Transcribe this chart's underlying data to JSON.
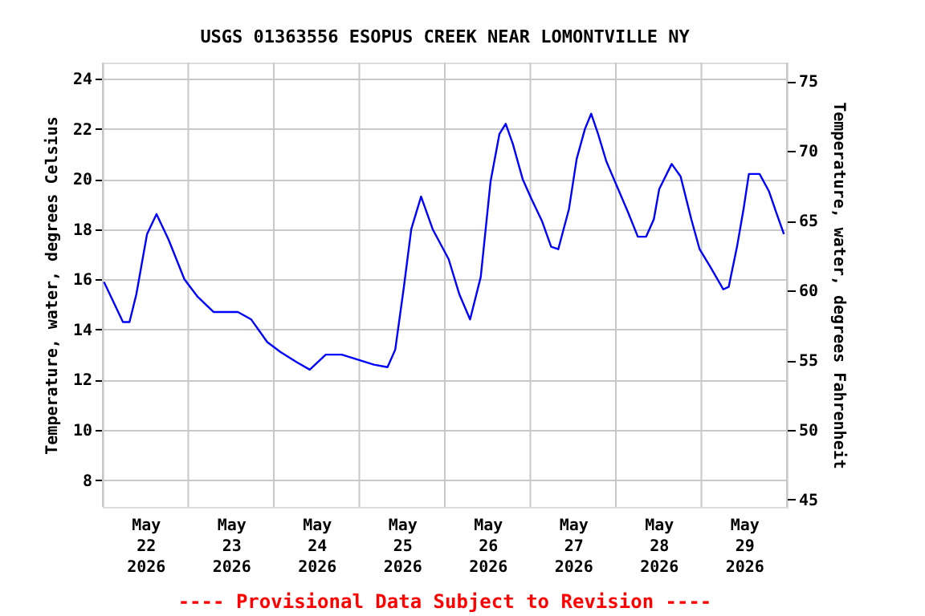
{
  "chart_data": {
    "type": "line",
    "title": "USGS 01363556 ESOPUS CREEK NEAR LOMONTVILLE NY",
    "ylabel": "Temperature, water, degrees Celsius",
    "y2label": "Temperature, water, degrees Fahrenheit",
    "annotations": [
      "---- Provisional Data Subject to Revision ----"
    ],
    "x": [
      "2026-05-22T00:20",
      "2026-05-22T05:40",
      "2026-05-22T07:30",
      "2026-05-22T09:25",
      "2026-05-22T12:25",
      "2026-05-22T15:05",
      "2026-05-22T18:25",
      "2026-05-22T22:55",
      "2026-05-23T02:40",
      "2026-05-23T07:05",
      "2026-05-23T13:55",
      "2026-05-23T17:40",
      "2026-05-23T22:10",
      "2026-05-24T01:55",
      "2026-05-24T06:25",
      "2026-05-24T10:05",
      "2026-05-24T14:35",
      "2026-05-24T19:05",
      "2026-05-24T23:35",
      "2026-05-25T04:05",
      "2026-05-25T07:55",
      "2026-05-25T10:05",
      "2026-05-25T12:25",
      "2026-05-25T14:35",
      "2026-05-25T17:20",
      "2026-05-25T20:35",
      "2026-05-26T01:05",
      "2026-05-26T04:05",
      "2026-05-26T07:05",
      "2026-05-26T10:05",
      "2026-05-26T12:50",
      "2026-05-26T15:20",
      "2026-05-26T17:05",
      "2026-05-26T19:05",
      "2026-05-26T21:50",
      "2026-05-27T00:20",
      "2026-05-27T03:20",
      "2026-05-27T05:50",
      "2026-05-27T07:50",
      "2026-05-27T10:50",
      "2026-05-27T13:00",
      "2026-05-27T15:20",
      "2026-05-27T17:05",
      "2026-05-27T19:00",
      "2026-05-27T21:20",
      "2026-05-28T00:20",
      "2026-05-28T03:20",
      "2026-05-28T06:10",
      "2026-05-28T08:30",
      "2026-05-28T10:40",
      "2026-05-28T12:10",
      "2026-05-28T15:40",
      "2026-05-28T18:10",
      "2026-05-28T21:10",
      "2026-05-28T23:30",
      "2026-05-29T02:30",
      "2026-05-29T06:10",
      "2026-05-29T07:40",
      "2026-05-29T10:00",
      "2026-05-29T11:50",
      "2026-05-29T13:20",
      "2026-05-29T16:20",
      "2026-05-29T19:00",
      "2026-05-29T21:10",
      "2026-05-29T23:10"
    ],
    "series": [
      {
        "color": "#0000ff",
        "values": [
          15.9,
          14.3,
          14.3,
          15.4,
          17.8,
          18.6,
          17.6,
          16.0,
          15.3,
          14.7,
          14.7,
          14.4,
          13.5,
          13.1,
          12.7,
          12.4,
          13.0,
          13.0,
          12.8,
          12.6,
          12.5,
          13.2,
          15.6,
          18.0,
          19.3,
          18.0,
          16.8,
          15.4,
          14.4,
          16.1,
          19.9,
          21.8,
          22.2,
          21.4,
          20.0,
          19.2,
          18.3,
          17.3,
          17.2,
          18.8,
          20.8,
          22.0,
          22.6,
          21.8,
          20.7,
          19.7,
          18.7,
          17.7,
          17.7,
          18.4,
          19.6,
          20.6,
          20.1,
          18.4,
          17.2,
          16.5,
          15.6,
          15.7,
          17.3,
          18.8,
          20.2,
          20.2,
          19.5,
          18.6,
          17.8
        ]
      }
    ],
    "xlim": [
      "2026-05-22T00:00",
      "2026-05-30T00:00"
    ],
    "xticks": [
      {
        "value": "2026-05-22T00:00",
        "label": null
      },
      {
        "value": "2026-05-22T12:00",
        "label": "May\n22\n2026"
      },
      {
        "value": "2026-05-23T00:00",
        "label": null
      },
      {
        "value": "2026-05-23T12:00",
        "label": "May\n23\n2026"
      },
      {
        "value": "2026-05-24T00:00",
        "label": null
      },
      {
        "value": "2026-05-24T12:00",
        "label": "May\n24\n2026"
      },
      {
        "value": "2026-05-25T00:00",
        "label": null
      },
      {
        "value": "2026-05-25T12:00",
        "label": "May\n25\n2026"
      },
      {
        "value": "2026-05-26T00:00",
        "label": null
      },
      {
        "value": "2026-05-26T12:00",
        "label": "May\n26\n2026"
      },
      {
        "value": "2026-05-27T00:00",
        "label": null
      },
      {
        "value": "2026-05-27T12:00",
        "label": "May\n27\n2026"
      },
      {
        "value": "2026-05-28T00:00",
        "label": null
      },
      {
        "value": "2026-05-28T12:00",
        "label": "May\n28\n2026"
      },
      {
        "value": "2026-05-29T00:00",
        "label": null
      },
      {
        "value": "2026-05-29T12:00",
        "label": "May\n29\n2026"
      },
      {
        "value": "2026-05-30T00:00",
        "label": null
      }
    ],
    "ylim": [
      6.93,
      24.64
    ],
    "yticks": [
      8,
      10,
      12,
      14,
      16,
      18,
      20,
      22,
      24
    ],
    "y2lim": [
      44.47,
      76.35
    ],
    "y2ticks": [
      45,
      50,
      55,
      60,
      65,
      70,
      75
    ],
    "grid": true,
    "marker": "none",
    "line_style": "solid"
  }
}
